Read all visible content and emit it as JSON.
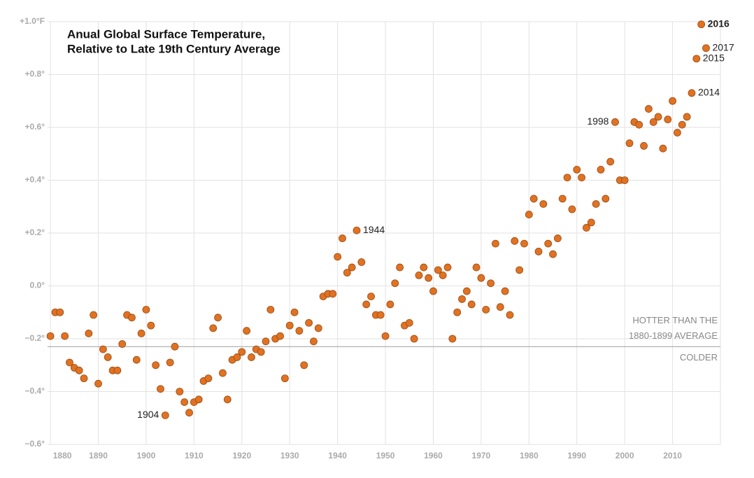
{
  "chart_data": {
    "type": "scatter",
    "title": [
      "Anual Global Surface Temperature,",
      "Relative to Late 19th Century Average"
    ],
    "color": "#e07222",
    "edge_color": "#9a4a12",
    "grid": true,
    "xlim": [
      1879.4,
      2020
    ],
    "xticks": [
      1880,
      1890,
      1900,
      1910,
      1920,
      1930,
      1940,
      1950,
      1960,
      1970,
      1980,
      1990,
      2000,
      2010
    ],
    "ylim": [
      -0.6,
      1.0
    ],
    "yticks": [
      {
        "value": -0.6,
        "label": "−0.6°"
      },
      {
        "value": -0.4,
        "label": "−0.4°"
      },
      {
        "value": -0.2,
        "label": "−0.2°"
      },
      {
        "value": 0.0,
        "label": "0.0°"
      },
      {
        "value": 0.2,
        "label": "+0.2°"
      },
      {
        "value": 0.4,
        "label": "+0.4°"
      },
      {
        "value": 0.6,
        "label": "+0.6°"
      },
      {
        "value": 0.8,
        "label": "+0.8°"
      },
      {
        "value": 1.0,
        "label": "+1.0°F"
      }
    ],
    "reference_line": {
      "value": -0.23,
      "above_label": [
        "HOTTER THAN THE",
        "1880-1899 AVERAGE"
      ],
      "below_label": "COLDER",
      "color": "#aaaaaa"
    },
    "x": [
      1880,
      1881,
      1882,
      1883,
      1884,
      1885,
      1886,
      1887,
      1888,
      1889,
      1890,
      1891,
      1892,
      1893,
      1894,
      1895,
      1896,
      1897,
      1898,
      1899,
      1900,
      1901,
      1902,
      1903,
      1904,
      1905,
      1906,
      1907,
      1908,
      1909,
      1910,
      1911,
      1912,
      1913,
      1914,
      1915,
      1916,
      1917,
      1918,
      1919,
      1920,
      1921,
      1922,
      1923,
      1924,
      1925,
      1926,
      1927,
      1928,
      1929,
      1930,
      1931,
      1932,
      1933,
      1934,
      1935,
      1936,
      1937,
      1938,
      1939,
      1940,
      1941,
      1942,
      1943,
      1944,
      1945,
      1946,
      1947,
      1948,
      1949,
      1950,
      1951,
      1952,
      1953,
      1954,
      1955,
      1956,
      1957,
      1958,
      1959,
      1960,
      1961,
      1962,
      1963,
      1964,
      1965,
      1966,
      1967,
      1968,
      1969,
      1970,
      1971,
      1972,
      1973,
      1974,
      1975,
      1976,
      1977,
      1978,
      1979,
      1980,
      1981,
      1982,
      1983,
      1984,
      1985,
      1986,
      1987,
      1988,
      1989,
      1990,
      1991,
      1992,
      1993,
      1994,
      1995,
      1996,
      1997,
      1998,
      1999,
      2000,
      2001,
      2002,
      2003,
      2004,
      2005,
      2006,
      2007,
      2008,
      2009,
      2010,
      2011,
      2012,
      2013,
      2014,
      2015,
      2016,
      2017
    ],
    "values": [
      -0.19,
      -0.1,
      -0.1,
      -0.19,
      -0.29,
      -0.31,
      -0.32,
      -0.35,
      -0.18,
      -0.11,
      -0.37,
      -0.24,
      -0.27,
      -0.32,
      -0.32,
      -0.22,
      -0.11,
      -0.12,
      -0.28,
      -0.18,
      -0.09,
      -0.15,
      -0.3,
      -0.39,
      -0.49,
      -0.29,
      -0.23,
      -0.4,
      -0.44,
      -0.48,
      -0.44,
      -0.43,
      -0.36,
      -0.35,
      -0.16,
      -0.12,
      -0.33,
      -0.43,
      -0.28,
      -0.27,
      -0.25,
      -0.17,
      -0.27,
      -0.24,
      -0.25,
      -0.21,
      -0.09,
      -0.2,
      -0.19,
      -0.35,
      -0.15,
      -0.1,
      -0.17,
      -0.3,
      -0.14,
      -0.21,
      -0.16,
      -0.04,
      -0.03,
      -0.03,
      0.11,
      0.18,
      0.05,
      0.07,
      0.21,
      0.09,
      -0.07,
      -0.04,
      -0.11,
      -0.11,
      -0.19,
      -0.07,
      0.01,
      0.07,
      -0.15,
      -0.14,
      -0.2,
      0.04,
      0.07,
      0.03,
      -0.02,
      0.06,
      0.04,
      0.07,
      -0.2,
      -0.1,
      -0.05,
      -0.02,
      -0.07,
      0.07,
      0.03,
      -0.09,
      0.01,
      0.16,
      -0.08,
      -0.02,
      -0.11,
      0.17,
      0.06,
      0.16,
      0.27,
      0.33,
      0.13,
      0.31,
      0.16,
      0.12,
      0.18,
      0.33,
      0.41,
      0.29,
      0.44,
      0.41,
      0.22,
      0.24,
      0.31,
      0.44,
      0.33,
      0.47,
      0.62,
      0.4,
      0.4,
      0.54,
      0.62,
      0.61,
      0.53,
      0.67,
      0.62,
      0.64,
      0.52,
      0.63,
      0.7,
      0.58,
      0.61,
      0.64,
      0.73,
      0.86,
      0.99,
      0.9
    ],
    "point_labels": [
      null,
      null,
      null,
      null,
      null,
      null,
      null,
      null,
      null,
      null,
      null,
      null,
      null,
      null,
      null,
      null,
      null,
      null,
      null,
      null,
      null,
      null,
      null,
      null,
      "1904",
      null,
      null,
      null,
      null,
      null,
      null,
      null,
      null,
      null,
      null,
      null,
      null,
      null,
      null,
      null,
      null,
      null,
      null,
      null,
      null,
      null,
      null,
      null,
      null,
      null,
      null,
      null,
      null,
      null,
      null,
      null,
      null,
      null,
      null,
      null,
      null,
      null,
      null,
      null,
      "1944",
      null,
      null,
      null,
      null,
      null,
      null,
      null,
      null,
      null,
      null,
      null,
      null,
      null,
      null,
      null,
      null,
      null,
      null,
      null,
      null,
      null,
      null,
      null,
      null,
      null,
      null,
      null,
      null,
      null,
      null,
      null,
      null,
      null,
      null,
      null,
      null,
      null,
      null,
      null,
      null,
      null,
      null,
      null,
      null,
      null,
      null,
      null,
      null,
      null,
      null,
      null,
      null,
      null,
      "1998",
      null,
      null,
      null,
      null,
      null,
      null,
      null,
      null,
      null,
      null,
      null,
      null,
      null,
      null,
      null,
      "2014",
      "2015",
      "2016",
      "2017"
    ]
  }
}
